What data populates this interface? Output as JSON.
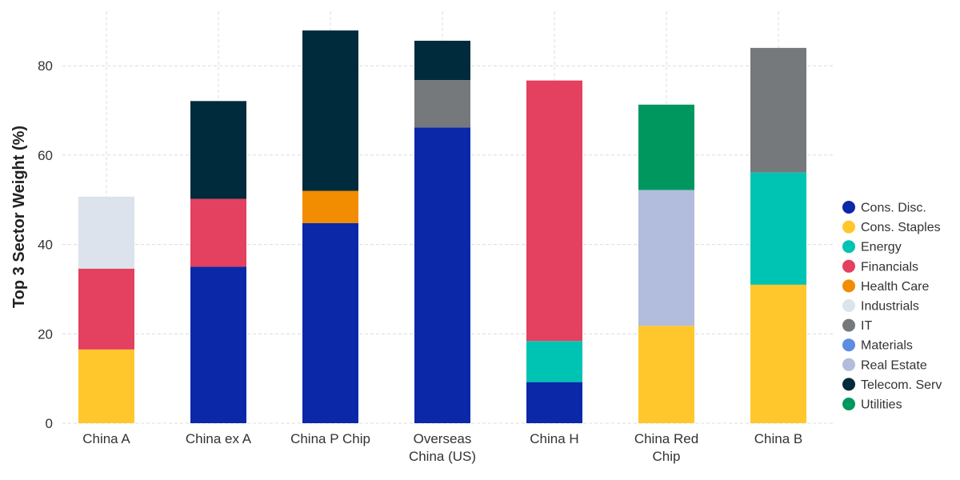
{
  "chart_data": {
    "type": "bar",
    "stacked": true,
    "title": "",
    "xlabel": "",
    "ylabel": "Top 3 Sector Weight (%)",
    "ylim": [
      0,
      90
    ],
    "yticks": [
      0,
      20,
      40,
      60,
      80
    ],
    "grid": true,
    "legend_position": "right",
    "categories": [
      [
        "China A"
      ],
      [
        "China ex A"
      ],
      [
        "China P Chip"
      ],
      [
        "Overseas",
        "China (US)"
      ],
      [
        "China H"
      ],
      [
        "China Red",
        "Chip"
      ],
      [
        "China B"
      ]
    ],
    "series": [
      {
        "name": "Cons. Disc.",
        "color": "#0a28a8",
        "values": [
          0,
          35.0,
          44.8,
          66.2,
          9.2,
          0,
          0
        ]
      },
      {
        "name": "Cons. Staples",
        "color": "#ffc72c",
        "values": [
          16.5,
          0,
          0,
          0,
          0,
          21.8,
          31.0
        ]
      },
      {
        "name": "Energy",
        "color": "#00c4b3",
        "values": [
          0,
          0,
          0,
          0,
          9.2,
          0,
          25.1
        ]
      },
      {
        "name": "Financials",
        "color": "#e4405f",
        "values": [
          18.1,
          15.2,
          0,
          0,
          58.3,
          0,
          0
        ]
      },
      {
        "name": "Health Care",
        "color": "#f28c00",
        "values": [
          0,
          0,
          7.2,
          0,
          0,
          0,
          0
        ]
      },
      {
        "name": "Industrials",
        "color": "#dde3ec",
        "values": [
          16.1,
          0,
          0,
          0,
          0,
          0,
          0
        ]
      },
      {
        "name": "IT",
        "color": "#76797c",
        "values": [
          0,
          0,
          0,
          10.6,
          0,
          0,
          27.9
        ]
      },
      {
        "name": "Materials",
        "color": "#5b8de0",
        "values": [
          0,
          0,
          0,
          0,
          0,
          0,
          0
        ]
      },
      {
        "name": "Real Estate",
        "color": "#b2bcdc",
        "values": [
          0,
          0,
          0,
          0,
          0,
          30.4,
          0
        ]
      },
      {
        "name": "Telecom. Serv",
        "color": "#002b3c",
        "values": [
          0,
          21.9,
          35.9,
          8.8,
          0,
          0,
          0
        ]
      },
      {
        "name": "Utilities",
        "color": "#00975f",
        "values": [
          0,
          0,
          0,
          0,
          0,
          19.1,
          0
        ]
      }
    ]
  }
}
